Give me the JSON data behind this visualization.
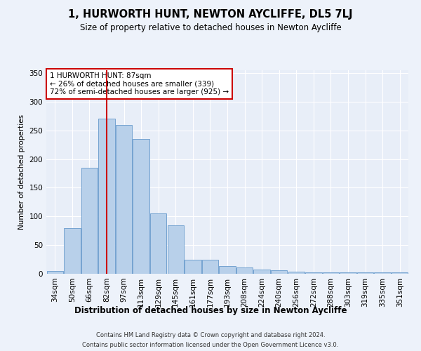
{
  "title": "1, HURWORTH HUNT, NEWTON AYCLIFFE, DL5 7LJ",
  "subtitle": "Size of property relative to detached houses in Newton Aycliffe",
  "xlabel": "Distribution of detached houses by size in Newton Aycliffe",
  "ylabel": "Number of detached properties",
  "categories": [
    "34sqm",
    "50sqm",
    "66sqm",
    "82sqm",
    "97sqm",
    "113sqm",
    "129sqm",
    "145sqm",
    "161sqm",
    "177sqm",
    "193sqm",
    "208sqm",
    "224sqm",
    "240sqm",
    "256sqm",
    "272sqm",
    "288sqm",
    "303sqm",
    "319sqm",
    "335sqm",
    "351sqm"
  ],
  "values": [
    5,
    80,
    185,
    270,
    260,
    235,
    105,
    85,
    25,
    25,
    13,
    11,
    7,
    6,
    4,
    3,
    2,
    3,
    2,
    3,
    3
  ],
  "bar_color": "#b8d0ea",
  "bar_edge_color": "#6699cc",
  "background_color": "#e8eef8",
  "grid_color": "#ffffff",
  "vline_x_index": 3,
  "vline_color": "#cc0000",
  "annotation_text": "1 HURWORTH HUNT: 87sqm\n← 26% of detached houses are smaller (339)\n72% of semi-detached houses are larger (925) →",
  "annotation_box_color": "#ffffff",
  "annotation_box_edge": "#cc0000",
  "ylim": [
    0,
    355
  ],
  "yticks": [
    0,
    50,
    100,
    150,
    200,
    250,
    300,
    350
  ],
  "footer_line1": "Contains HM Land Registry data © Crown copyright and database right 2024.",
  "footer_line2": "Contains public sector information licensed under the Open Government Licence v3.0."
}
